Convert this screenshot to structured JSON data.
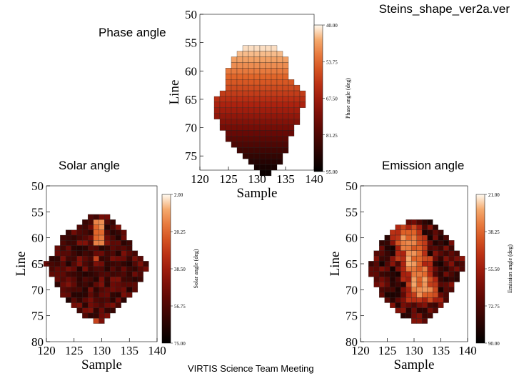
{
  "page": {
    "title": "Steins_shape_ver2a.ver",
    "footer": "VIRTIS Science Team Meeting"
  },
  "chart_data": [
    {
      "id": "phase",
      "type": "heatmap",
      "title": "Phase angle",
      "xlabel": "Sample",
      "ylabel": "Line",
      "xlim": [
        120,
        140
      ],
      "ylim": [
        50,
        77.5
      ],
      "x_ticks": [
        "120",
        "125",
        "130",
        "135",
        "140"
      ],
      "y_ticks": [
        "50",
        "55",
        "60",
        "65",
        "70",
        "75"
      ],
      "colorbar": {
        "label": "Phase angle (deg)",
        "ticks": [
          "40.00",
          "53.75",
          "67.50",
          "81.25",
          "95.00"
        ],
        "range": [
          40,
          95
        ]
      },
      "row_start": 56,
      "row_extents": [
        [
          128,
          133
        ],
        [
          127,
          134
        ],
        [
          126,
          135
        ],
        [
          126,
          135
        ],
        [
          125,
          135
        ],
        [
          125,
          135
        ],
        [
          125,
          136
        ],
        [
          125,
          137
        ],
        [
          124,
          138
        ],
        [
          123,
          138
        ],
        [
          123,
          138
        ],
        [
          123,
          137
        ],
        [
          123,
          137
        ],
        [
          124,
          137
        ],
        [
          124,
          136
        ],
        [
          125,
          136
        ],
        [
          125,
          135
        ],
        [
          126,
          135
        ],
        [
          127,
          135
        ],
        [
          128,
          134
        ],
        [
          129,
          134
        ],
        [
          130,
          133
        ],
        [
          131,
          132
        ]
      ],
      "value_model": "rows",
      "value_range": [
        42,
        93
      ]
    },
    {
      "id": "solar",
      "type": "heatmap",
      "title": "Solar angle",
      "xlabel": "Sample",
      "ylabel": "Line",
      "xlim": [
        120,
        140
      ],
      "ylim": [
        50,
        80
      ],
      "x_ticks": [
        "120",
        "125",
        "130",
        "135",
        "140"
      ],
      "y_ticks": [
        "50",
        "55",
        "60",
        "65",
        "70",
        "75",
        "80"
      ],
      "colorbar": {
        "label": "Solar angle (deg)",
        "ticks": [
          "2.00",
          "20.25",
          "38.50",
          "56.75",
          "75.00"
        ],
        "range": [
          2,
          75
        ]
      },
      "row_start": 56,
      "row_extents": [
        [
          128,
          131
        ],
        [
          127,
          132
        ],
        [
          126,
          133
        ],
        [
          124,
          134
        ],
        [
          123,
          134
        ],
        [
          123,
          135
        ],
        [
          122,
          135
        ],
        [
          122,
          136
        ],
        [
          121,
          137
        ],
        [
          120,
          138
        ],
        [
          121,
          138
        ],
        [
          121,
          137
        ],
        [
          122,
          137
        ],
        [
          122,
          136
        ],
        [
          123,
          136
        ],
        [
          123,
          135
        ],
        [
          124,
          134
        ],
        [
          125,
          133
        ],
        [
          126,
          132
        ],
        [
          127,
          131
        ],
        [
          129,
          130
        ]
      ],
      "value_model": "solar",
      "value_range": [
        10,
        70
      ]
    },
    {
      "id": "emission",
      "type": "heatmap",
      "title": "Emission angle",
      "xlabel": "Sample",
      "ylabel": "Line",
      "xlim": [
        120,
        140
      ],
      "ylim": [
        50,
        80
      ],
      "x_ticks": [
        "120",
        "125",
        "130",
        "135",
        "140"
      ],
      "y_ticks": [
        "50",
        "55",
        "60",
        "65",
        "70",
        "75",
        "80"
      ],
      "colorbar": {
        "label": "Emission angle (deg)",
        "ticks": [
          "21.00",
          "38.25",
          "55.50",
          "72.75",
          "90.00"
        ],
        "range": [
          21,
          90
        ]
      },
      "row_start": 57,
      "row_extents": [
        [
          129,
          133
        ],
        [
          127,
          134
        ],
        [
          126,
          135
        ],
        [
          125,
          136
        ],
        [
          124,
          137
        ],
        [
          124,
          137
        ],
        [
          123,
          138
        ],
        [
          123,
          139
        ],
        [
          122,
          139
        ],
        [
          122,
          139
        ],
        [
          122,
          138
        ],
        [
          123,
          138
        ],
        [
          123,
          137
        ],
        [
          124,
          137
        ],
        [
          124,
          136
        ],
        [
          125,
          136
        ],
        [
          126,
          135
        ],
        [
          127,
          134
        ],
        [
          128,
          133
        ],
        [
          130,
          132
        ]
      ],
      "value_model": "emission",
      "value_range": [
        25,
        88
      ]
    }
  ]
}
